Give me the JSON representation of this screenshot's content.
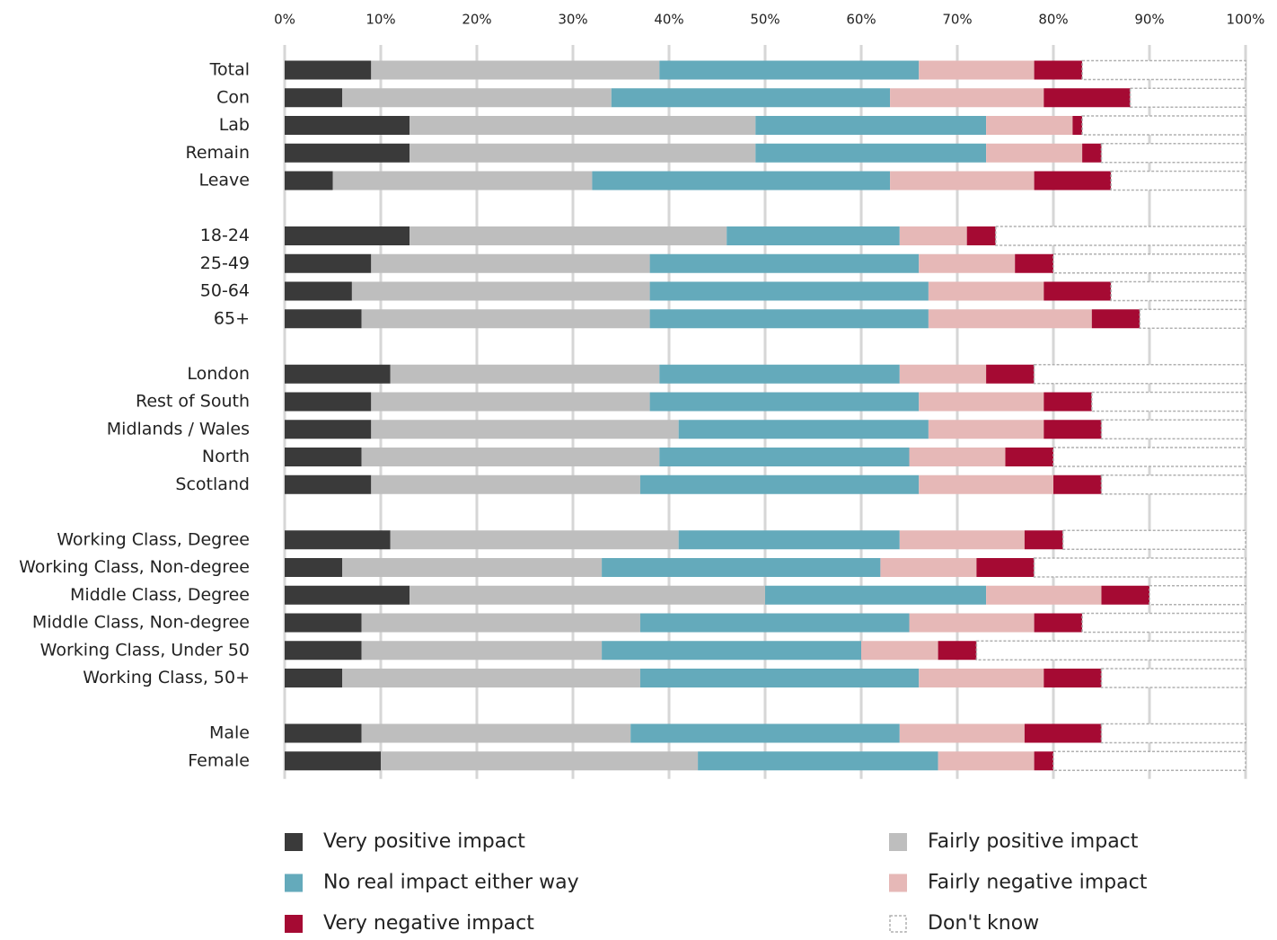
{
  "chart_data": {
    "type": "stacked-barh",
    "categories": [
      "Total",
      "Con",
      "Lab",
      "Remain",
      "Leave",
      null,
      "18-24",
      "25-49",
      "50-64",
      "65+",
      null,
      "London",
      "Rest of South",
      "Midlands / Wales",
      "North",
      "Scotland",
      null,
      "Working Class, Degree",
      "Working Class, Non-degree",
      "Middle Class, Degree",
      "Middle Class, Non-degree",
      "Working Class, Under 50",
      "Working Class, 50+",
      null,
      "Male",
      "Female"
    ],
    "series": [
      {
        "name": "Very positive impact",
        "color": "#3a3a3a",
        "values": [
          9,
          6,
          13,
          13,
          5,
          null,
          13,
          9,
          7,
          8,
          null,
          11,
          9,
          9,
          8,
          9,
          null,
          11,
          6,
          13,
          8,
          8,
          6,
          null,
          8,
          10
        ]
      },
      {
        "name": "Fairly positive impact",
        "color": "#bebebe",
        "values": [
          30,
          28,
          36,
          36,
          27,
          null,
          33,
          29,
          31,
          30,
          null,
          28,
          29,
          32,
          31,
          28,
          null,
          30,
          27,
          37,
          29,
          25,
          31,
          null,
          28,
          33
        ]
      },
      {
        "name": "No real impact either way",
        "color": "#64aabb",
        "values": [
          27,
          29,
          24,
          24,
          31,
          null,
          18,
          28,
          29,
          29,
          null,
          25,
          28,
          26,
          26,
          29,
          null,
          23,
          29,
          23,
          28,
          27,
          29,
          null,
          28,
          25
        ]
      },
      {
        "name": "Fairly negative impact",
        "color": "#e6b8b7",
        "values": [
          12,
          16,
          9,
          10,
          15,
          null,
          7,
          10,
          12,
          17,
          null,
          9,
          13,
          12,
          10,
          14,
          null,
          13,
          10,
          12,
          13,
          8,
          13,
          null,
          13,
          10
        ]
      },
      {
        "name": "Very negative impact",
        "color": "#a50a33",
        "values": [
          5,
          9,
          1,
          2,
          8,
          null,
          3,
          4,
          7,
          5,
          null,
          5,
          5,
          6,
          5,
          5,
          null,
          4,
          6,
          5,
          5,
          4,
          6,
          null,
          8,
          2
        ]
      },
      {
        "name": "Don't know",
        "color": "#ffffff",
        "border": "dashed",
        "values": [
          17,
          12,
          17,
          15,
          14,
          null,
          26,
          20,
          14,
          11,
          null,
          22,
          16,
          15,
          20,
          15,
          null,
          19,
          22,
          10,
          17,
          28,
          15,
          null,
          15,
          20
        ]
      }
    ],
    "xlim": [
      0,
      100
    ],
    "xticks": [
      {
        "value": 0,
        "label": "0%"
      },
      {
        "value": 10,
        "label": "10%"
      },
      {
        "value": 20,
        "label": "20%"
      },
      {
        "value": 30,
        "label": "30%"
      },
      {
        "value": 40,
        "label": "40%"
      },
      {
        "value": 50,
        "label": "50%"
      },
      {
        "value": 60,
        "label": "60%"
      },
      {
        "value": 70,
        "label": "70%"
      },
      {
        "value": 80,
        "label": "80%"
      },
      {
        "value": 90,
        "label": "90%"
      },
      {
        "value": 100,
        "label": "100%"
      }
    ],
    "grid": true,
    "legend": "bottom"
  }
}
